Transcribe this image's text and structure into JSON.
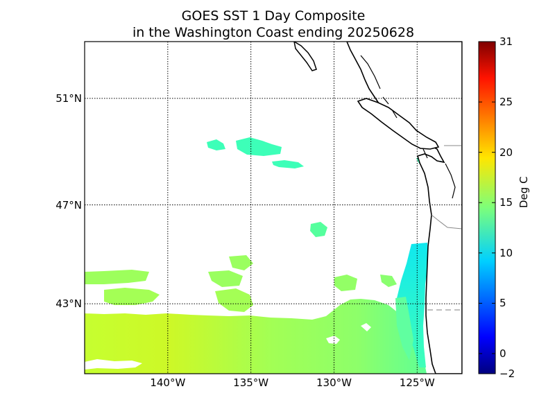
{
  "title": {
    "line1": "GOES SST 1 Day Composite",
    "line2": "in the Washington Coast ending 20250628"
  },
  "map": {
    "product": "GOES SST",
    "region": "Washington Coast",
    "lon_range": [
      -145,
      -122.3
    ],
    "lat_range": [
      40,
      53
    ],
    "x_ticks": [
      {
        "lon": -140,
        "label": "140°W"
      },
      {
        "lon": -135,
        "label": "135°W"
      },
      {
        "lon": -130,
        "label": "130°W"
      },
      {
        "lon": -125,
        "label": "125°W"
      }
    ],
    "y_ticks": [
      {
        "lat": 51,
        "label": "51°N"
      },
      {
        "lat": 47,
        "label": "47°N"
      },
      {
        "lat": 43,
        "label": "43°N"
      }
    ],
    "gridlines": "dotted",
    "land_color": "#ffffff",
    "coastline_color": "#000000"
  },
  "colorbar": {
    "label": "Deg C",
    "min": -2,
    "max": 31,
    "colormap": "jet",
    "ticks": [
      {
        "value": 31,
        "label": "31"
      },
      {
        "value": 25,
        "label": "25"
      },
      {
        "value": 20,
        "label": "20"
      },
      {
        "value": 15,
        "label": "15"
      },
      {
        "value": 10,
        "label": "10"
      },
      {
        "value": 5,
        "label": "5"
      },
      {
        "value": 0,
        "label": "0"
      },
      {
        "value": -2,
        "label": "−2"
      }
    ]
  }
}
